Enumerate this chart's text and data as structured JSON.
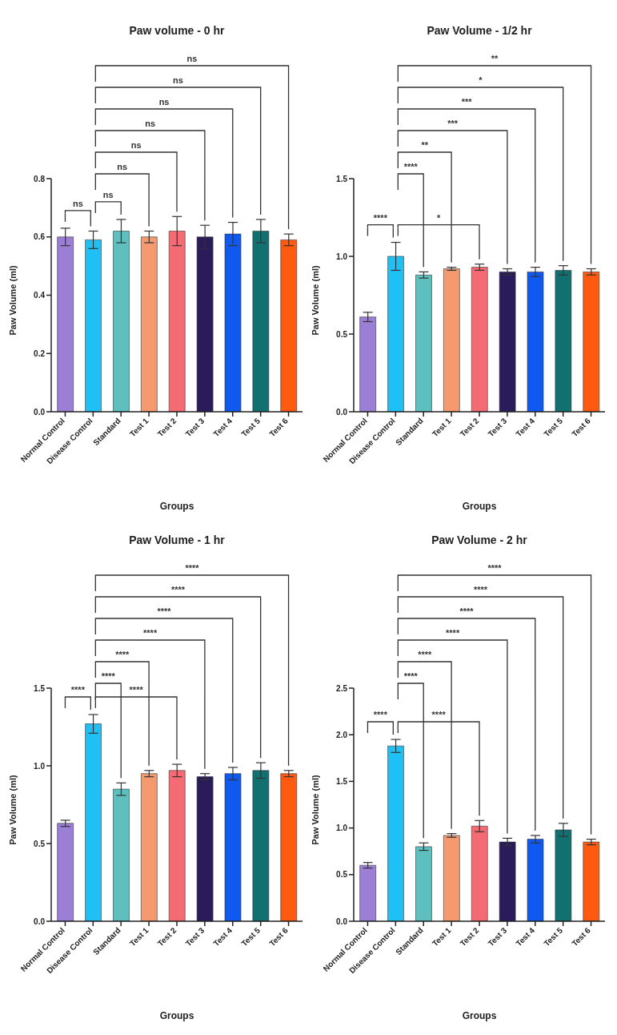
{
  "chart_data": [
    {
      "type": "bar",
      "title": "Paw volume - 0 hr",
      "xlabel": "Groups",
      "ylabel": "Paw Volume (ml)",
      "categories": [
        "Normal Control",
        "Disease Control",
        "Standard",
        "Test 1",
        "Test 2",
        "Test 3",
        "Test 4",
        "Test 5",
        "Test 6"
      ],
      "values": [
        0.6,
        0.59,
        0.62,
        0.6,
        0.62,
        0.6,
        0.61,
        0.62,
        0.59
      ],
      "errors": [
        0.03,
        0.03,
        0.04,
        0.02,
        0.05,
        0.04,
        0.04,
        0.04,
        0.02
      ],
      "colors": [
        "#9b7fd4",
        "#1ec0f5",
        "#5fbfbf",
        "#f59a6e",
        "#f56b73",
        "#2a1b5a",
        "#1059f0",
        "#137070",
        "#ff5a10"
      ],
      "ylim": [
        0,
        0.8
      ],
      "yticks": [
        {
          "value": 0,
          "label": "0.0"
        },
        {
          "value": 0.2,
          "label": "0.2"
        },
        {
          "value": 0.4,
          "label": "0.4"
        },
        {
          "value": 0.6,
          "label": "0.6"
        },
        {
          "value": 0.8,
          "label": "0.8"
        }
      ],
      "grid": false,
      "legend": false,
      "annotations": [
        "ns",
        "ns",
        "ns",
        "ns",
        "ns",
        "ns",
        "ns",
        "ns"
      ]
    },
    {
      "type": "bar",
      "title": "Paw Volume - 1/2 hr",
      "xlabel": "Groups",
      "ylabel": "Paw Volume (ml)",
      "categories": [
        "Normal Control",
        "Disease Control",
        "Standard",
        "Test 1",
        "Test 2",
        "Test 3",
        "Test 4",
        "Test 5",
        "Test 6"
      ],
      "values": [
        0.61,
        1.0,
        0.88,
        0.92,
        0.93,
        0.9,
        0.9,
        0.91,
        0.9
      ],
      "errors": [
        0.03,
        0.09,
        0.02,
        0.01,
        0.02,
        0.02,
        0.03,
        0.03,
        0.02
      ],
      "colors": [
        "#9b7fd4",
        "#1ec0f5",
        "#5fbfbf",
        "#f59a6e",
        "#f56b73",
        "#2a1b5a",
        "#1059f0",
        "#137070",
        "#ff5a10"
      ],
      "ylim": [
        0,
        1.5
      ],
      "yticks": [
        {
          "value": 0,
          "label": "0.0"
        },
        {
          "value": 0.5,
          "label": "0.5"
        },
        {
          "value": 1,
          "label": "1.0"
        },
        {
          "value": 1.5,
          "label": "1.5"
        }
      ],
      "grid": false,
      "legend": false,
      "annotations": [
        "****",
        "****",
        "**",
        "*",
        "***",
        "***",
        "*",
        "**"
      ]
    },
    {
      "type": "bar",
      "title": "Paw Volume - 1 hr",
      "xlabel": "Groups",
      "ylabel": "Paw Volume (ml)",
      "categories": [
        "Normal Control",
        "Disease Control",
        "Standard",
        "Test 1",
        "Test 2",
        "Test 3",
        "Test 4",
        "Test 5",
        "Test 6"
      ],
      "values": [
        0.63,
        1.27,
        0.85,
        0.95,
        0.97,
        0.93,
        0.95,
        0.97,
        0.95
      ],
      "errors": [
        0.02,
        0.06,
        0.04,
        0.02,
        0.04,
        0.02,
        0.04,
        0.05,
        0.02
      ],
      "colors": [
        "#9b7fd4",
        "#1ec0f5",
        "#5fbfbf",
        "#f59a6e",
        "#f56b73",
        "#2a1b5a",
        "#1059f0",
        "#137070",
        "#ff5a10"
      ],
      "ylim": [
        0,
        1.5
      ],
      "yticks": [
        {
          "value": 0,
          "label": "0.0"
        },
        {
          "value": 0.5,
          "label": "0.5"
        },
        {
          "value": 1,
          "label": "1.0"
        },
        {
          "value": 1.5,
          "label": "1.5"
        }
      ],
      "grid": false,
      "legend": false,
      "annotations": [
        "****",
        "****",
        "****",
        "****",
        "****",
        "****",
        "****",
        "****"
      ]
    },
    {
      "type": "bar",
      "title": "Paw Volume - 2 hr",
      "xlabel": "Groups",
      "ylabel": "Paw Volume (ml)",
      "categories": [
        "Normal Control",
        "Disease Control",
        "Standard",
        "Test 1",
        "Test 2",
        "Test 3",
        "Test 4",
        "Test 5",
        "Test 6"
      ],
      "values": [
        0.6,
        1.88,
        0.8,
        0.92,
        1.02,
        0.85,
        0.88,
        0.98,
        0.85
      ],
      "errors": [
        0.03,
        0.07,
        0.04,
        0.02,
        0.06,
        0.04,
        0.04,
        0.07,
        0.03
      ],
      "colors": [
        "#9b7fd4",
        "#1ec0f5",
        "#5fbfbf",
        "#f59a6e",
        "#f56b73",
        "#2a1b5a",
        "#1059f0",
        "#137070",
        "#ff5a10"
      ],
      "ylim": [
        0,
        2.5
      ],
      "yticks": [
        {
          "value": 0,
          "label": "0.0"
        },
        {
          "value": 0.5,
          "label": "0.5"
        },
        {
          "value": 1,
          "label": "1.0"
        },
        {
          "value": 1.5,
          "label": "1.5"
        },
        {
          "value": 2,
          "label": "2.0"
        },
        {
          "value": 2.5,
          "label": "2.5"
        }
      ],
      "grid": false,
      "legend": false,
      "annotations": [
        "****",
        "****",
        "****",
        "****",
        "****",
        "****",
        "****",
        "****"
      ]
    }
  ]
}
